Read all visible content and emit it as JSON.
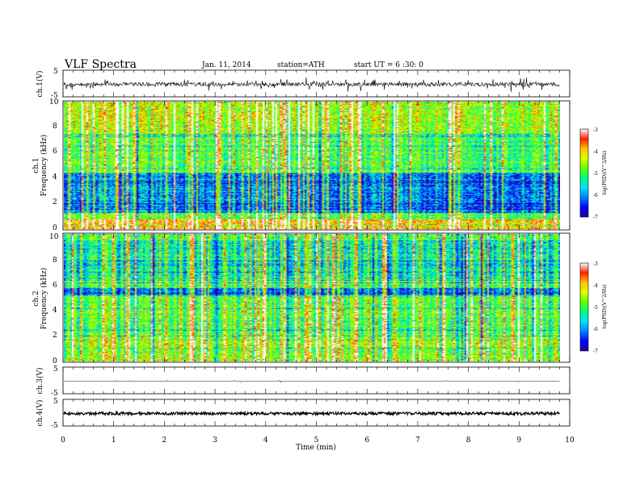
{
  "header": {
    "title": "VLF Spectra",
    "date": "Jan. 11, 2014",
    "station": "station=ATH",
    "start": "start UT = 6 :30: 0"
  },
  "chart_data": [
    {
      "type": "line",
      "panel": "ch1-waveform",
      "ylabel": "ch.1(V)",
      "yticks": [
        "5",
        "-5"
      ],
      "ylim": [
        -5,
        5
      ],
      "xlim": [
        0,
        10
      ],
      "x_extent": [
        0,
        9.8
      ],
      "series_description_level": -0.2,
      "color": "#000000"
    },
    {
      "type": "heatmap",
      "panel": "ch1-spectrogram",
      "ylabel_line1": "ch.1",
      "ylabel_line2": "Frequency (kHz)",
      "yticks": [
        "0",
        "2",
        "4",
        "6",
        "8",
        "10"
      ],
      "ylim": [
        0,
        10
      ],
      "xlim": [
        0,
        10
      ],
      "x_extent": [
        0,
        9.8
      ],
      "colorbar": {
        "label": "log(PSD)(V^2/Hz)",
        "ticks": [
          "-3",
          "-4",
          "-5",
          "-6",
          "-7"
        ],
        "range": [
          -7,
          -3
        ]
      }
    },
    {
      "type": "heatmap",
      "panel": "ch2-spectrogram",
      "ylabel_line1": "ch.2",
      "ylabel_line2": "Frequency (kHz)",
      "yticks": [
        "0",
        "2",
        "4",
        "6",
        "8",
        "10"
      ],
      "ylim": [
        0,
        10
      ],
      "xlim": [
        0,
        10
      ],
      "x_extent": [
        0,
        9.8
      ],
      "colorbar": {
        "label": "log(PSD)(V^2/Hz)",
        "ticks": [
          "-3",
          "-4",
          "-5",
          "-6",
          "-7"
        ],
        "range": [
          -7,
          -3
        ]
      }
    },
    {
      "type": "line",
      "panel": "ch3-waveform",
      "ylabel": "ch.3(V)",
      "yticks": [
        "5",
        "-5"
      ],
      "ylim": [
        -5,
        5
      ],
      "xlim": [
        0,
        10
      ],
      "x_extent": [
        0,
        9.8
      ],
      "series_description_level": 0,
      "color": "#000000"
    },
    {
      "type": "line",
      "panel": "ch4-waveform",
      "ylabel": "ch.4(V)",
      "yticks": [
        "5",
        "-5"
      ],
      "ylim": [
        -5,
        5
      ],
      "xlim": [
        0,
        10
      ],
      "x_extent": [
        0,
        9.8
      ],
      "series_description_level": 0,
      "color": "#000000"
    }
  ],
  "xaxis": {
    "label": "Time (min)",
    "ticks": [
      "0",
      "1",
      "2",
      "3",
      "4",
      "5",
      "6",
      "7",
      "8",
      "9",
      "10"
    ]
  },
  "colormap": [
    "#2b0099",
    "#0000ff",
    "#0080ff",
    "#00e0ff",
    "#00ff80",
    "#60ff00",
    "#e0ff00",
    "#ffc000",
    "#ff2000",
    "#ffffff"
  ]
}
